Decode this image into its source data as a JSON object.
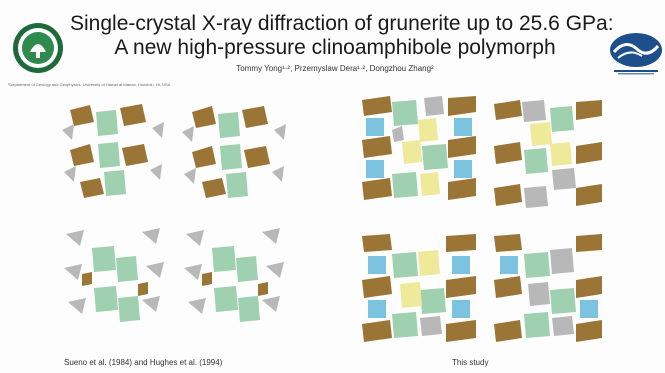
{
  "poster": {
    "title_line1": "Single-crystal X-ray diffraction of grunerite up to 25.6 GPa:",
    "title_line2": "A new high-pressure clinoamphibole polymorph",
    "authors": "Tommy Yong¹·², Przemyslaw Dera¹·², Dongzhou Zhang²",
    "affiliation": "¹Department of Geology and Geophysics, University of Hawaii at Manoa, Honolulu, HI, USA",
    "left_caption": "Sueno et al. (1984) and Hughes et al. (1994)",
    "right_caption": "This study",
    "colors": {
      "brown": "#9a7536",
      "green": "#9fd0b0",
      "gray": "#b8b8b8",
      "blue": "#7cc3e0",
      "yellow": "#eeea9a"
    }
  }
}
